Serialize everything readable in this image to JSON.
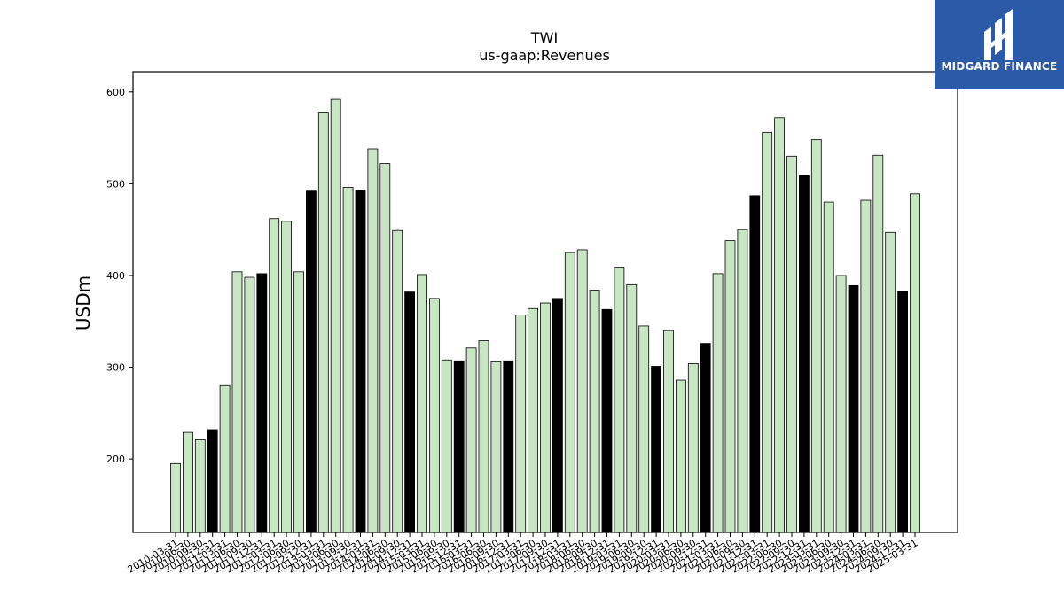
{
  "chart_data": {
    "type": "bar",
    "title": "TWI",
    "subtitle": "us-gaap:Revenues",
    "xlabel": "",
    "ylabel": "USDm",
    "ylim": [
      120,
      622
    ],
    "yticks": [
      200,
      300,
      400,
      500,
      600
    ],
    "grid": false,
    "colors": {
      "default": "#c8e6c4",
      "highlight": "#000000",
      "edge": "#000000"
    },
    "categories": [
      "2010-03-31",
      "2010-06-30",
      "2010-09-30",
      "2010-12-31",
      "2011-03-31",
      "2011-06-30",
      "2011-09-30",
      "2011-12-31",
      "2012-03-31",
      "2012-06-30",
      "2012-09-30",
      "2012-12-31",
      "2013-03-31",
      "2013-06-30",
      "2013-09-30",
      "2013-12-31",
      "2014-03-31",
      "2014-06-30",
      "2014-09-30",
      "2014-12-31",
      "2015-03-31",
      "2015-06-30",
      "2015-09-30",
      "2015-12-31",
      "2016-03-31",
      "2016-06-30",
      "2016-09-30",
      "2016-12-31",
      "2017-03-31",
      "2017-06-30",
      "2017-09-30",
      "2017-12-31",
      "2018-03-31",
      "2018-06-30",
      "2018-09-30",
      "2018-12-31",
      "2019-03-31",
      "2019-06-30",
      "2019-09-30",
      "2019-12-31",
      "2020-03-31",
      "2020-06-30",
      "2020-09-30",
      "2020-12-31",
      "2021-03-31",
      "2021-06-30",
      "2021-09-30",
      "2021-12-31",
      "2022-03-31",
      "2022-06-30",
      "2022-09-30",
      "2022-12-31",
      "2023-03-31",
      "2023-06-30",
      "2023-09-30",
      "2023-12-31",
      "2024-03-31",
      "2024-06-30",
      "2024-09-30",
      "2024-12-31",
      "2025-03-31"
    ],
    "values": [
      195,
      229,
      221,
      232,
      280,
      404,
      398,
      402,
      462,
      459,
      404,
      492,
      578,
      592,
      496,
      493,
      538,
      522,
      449,
      382,
      401,
      375,
      308,
      307,
      321,
      329,
      306,
      307,
      357,
      364,
      370,
      375,
      425,
      428,
      384,
      363,
      409,
      390,
      345,
      301,
      340,
      286,
      304,
      326,
      402,
      438,
      450,
      487,
      556,
      572,
      530,
      509,
      548,
      480,
      400,
      389,
      482,
      531,
      447,
      383,
      489
    ],
    "highlight": [
      false,
      false,
      false,
      true,
      false,
      false,
      false,
      true,
      false,
      false,
      false,
      true,
      false,
      false,
      false,
      true,
      false,
      false,
      false,
      true,
      false,
      false,
      false,
      true,
      false,
      false,
      false,
      true,
      false,
      false,
      false,
      true,
      false,
      false,
      false,
      true,
      false,
      false,
      false,
      true,
      false,
      false,
      false,
      true,
      false,
      false,
      false,
      true,
      false,
      false,
      false,
      true,
      false,
      false,
      false,
      true,
      false,
      false,
      false,
      true,
      false
    ]
  },
  "logo": {
    "text": "MIDGARD FINANCE",
    "background": "#2b5aa8"
  }
}
